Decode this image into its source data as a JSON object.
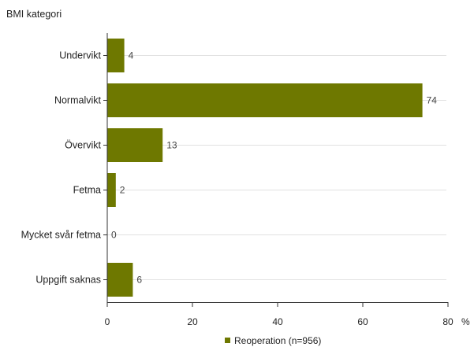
{
  "chart_data": {
    "type": "bar",
    "orientation": "horizontal",
    "title": "",
    "ylabel": "BMI kategori",
    "xlabel": "%",
    "categories": [
      "Undervikt",
      "Normalvikt",
      "Övervikt",
      "Fetma",
      "Mycket svår fetma",
      "Uppgift saknas"
    ],
    "series": [
      {
        "name": "Reoperation (n=956)",
        "values": [
          4,
          74,
          13,
          2,
          0,
          6
        ],
        "color": "#6e7800"
      }
    ],
    "data_labels": [
      "4",
      "74",
      "13",
      "2",
      "0",
      "6"
    ],
    "xlim": [
      0,
      80
    ],
    "xticks": [
      0,
      20,
      40,
      60,
      80
    ],
    "xtick_labels": [
      "0",
      "20",
      "40",
      "60",
      "80"
    ],
    "grid": true,
    "legend_position": "bottom"
  }
}
